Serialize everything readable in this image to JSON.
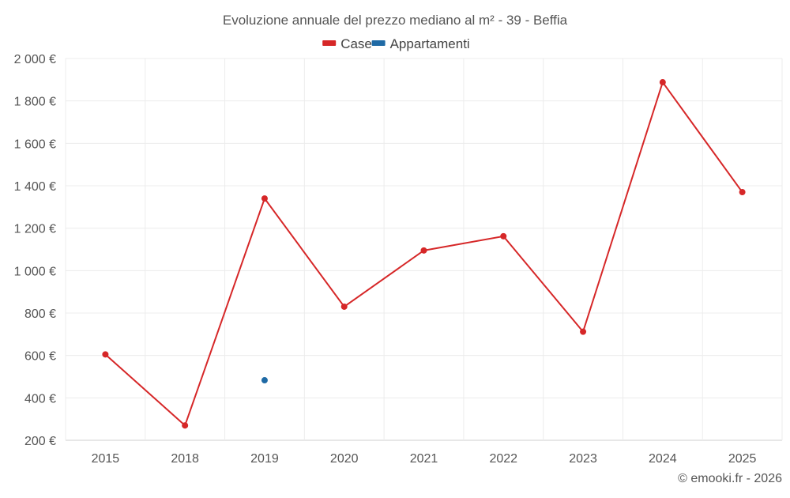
{
  "chart_data": {
    "type": "line",
    "title": "Evoluzione annuale del prezzo mediano al m² - 39 - Beffia",
    "categories": [
      "2015",
      "2018",
      "2019",
      "2020",
      "2021",
      "2022",
      "2023",
      "2024",
      "2025"
    ],
    "series": [
      {
        "name": "Case",
        "color": "#d62728",
        "values": [
          605,
          270,
          1340,
          830,
          1095,
          1162,
          712,
          1888,
          1370
        ]
      },
      {
        "name": "Appartamenti",
        "color": "#1f6aa5",
        "values": [
          null,
          null,
          483,
          null,
          null,
          null,
          null,
          null,
          null
        ]
      }
    ],
    "y_ticks": [
      200,
      400,
      600,
      800,
      1000,
      1200,
      1400,
      1600,
      1800,
      2000
    ],
    "y_tick_labels": [
      "200 €",
      "400 €",
      "600 €",
      "800 €",
      "1 000 €",
      "1 200 €",
      "1 400 €",
      "1 600 €",
      "1 800 €",
      "2 000 €"
    ],
    "ylim": [
      200,
      2000
    ],
    "xlabel": "",
    "ylabel": "",
    "legend_position": "top-center",
    "grid": true,
    "credit": "© emooki.fr - 2026"
  },
  "colors": {
    "grid": "#ececec",
    "axis_text": "#555555",
    "title_text": "#555555"
  }
}
